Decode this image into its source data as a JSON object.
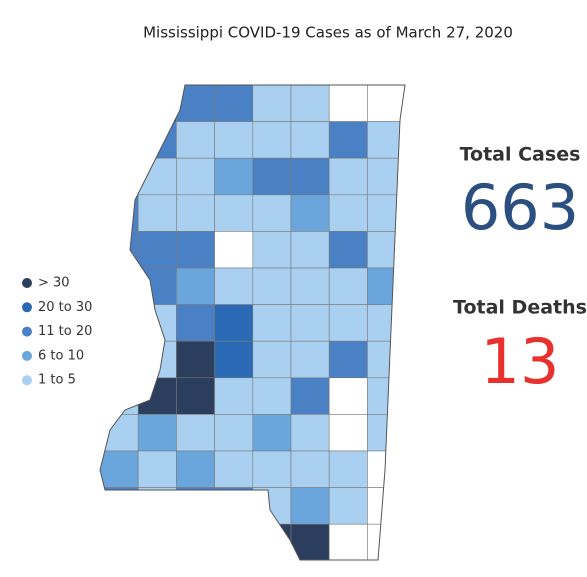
{
  "title": "Mississippi COVID-19 Cases as of March 27, 2020",
  "legend": [
    {
      "label": "> 30",
      "color": "#2c3e5e"
    },
    {
      "label": "20 to 30",
      "color": "#2a6ab4"
    },
    {
      "label": "11 to 20",
      "color": "#4a80c4"
    },
    {
      "label": "6 to 10",
      "color": "#6aa6dc"
    },
    {
      "label": "1 to 5",
      "color": "#a9d0f0"
    }
  ],
  "stats": [
    {
      "label": "Total Cases",
      "value": 663,
      "color": "#2b4f80"
    },
    {
      "label": "Total Deaths",
      "value": 13,
      "color": "#e8312f"
    }
  ]
}
